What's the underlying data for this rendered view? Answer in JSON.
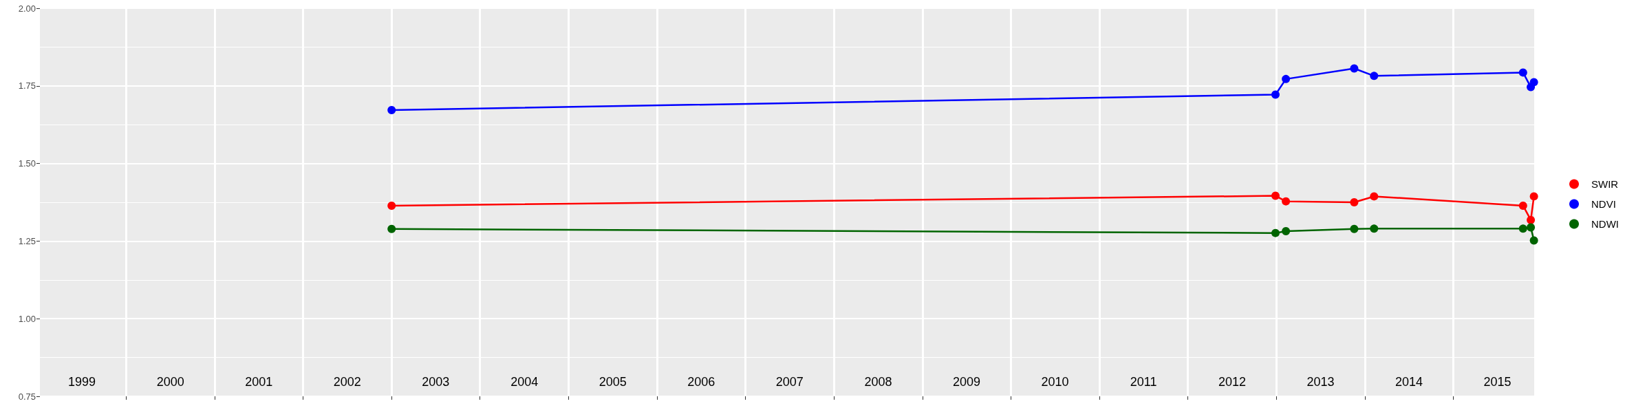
{
  "chart_data": {
    "type": "line",
    "x": [
      "2003-01-01",
      "2012-12-28",
      "2013-02-09",
      "2013-11-18",
      "2014-02-08",
      "2015-10-16",
      "2015-11-17",
      "2015-11-30"
    ],
    "series": [
      {
        "name": "SWIR",
        "color": "#ff0000",
        "values": [
          1.364,
          1.396,
          1.378,
          1.375,
          1.394,
          1.364,
          1.318,
          1.394
        ]
      },
      {
        "name": "NDVI",
        "color": "#0000ff",
        "values": [
          1.672,
          1.722,
          1.772,
          1.806,
          1.782,
          1.793,
          1.746,
          1.762
        ]
      },
      {
        "name": "NDWI",
        "color": "#006400",
        "values": [
          1.289,
          1.276,
          1.282,
          1.289,
          1.29,
          1.29,
          1.294,
          1.252
        ]
      }
    ],
    "xlim": [
      "1999-01-10",
      "2015-12-01"
    ],
    "xticks": [
      {
        "value": "1999-07-02",
        "label": "1999"
      },
      {
        "value": "2000-01-01",
        "label": null
      },
      {
        "value": "2000-07-02",
        "label": "2000"
      },
      {
        "value": "2001-01-01",
        "label": null
      },
      {
        "value": "2001-07-02",
        "label": "2001"
      },
      {
        "value": "2002-01-01",
        "label": null
      },
      {
        "value": "2002-07-02",
        "label": "2002"
      },
      {
        "value": "2003-01-01",
        "label": null
      },
      {
        "value": "2003-07-02",
        "label": "2003"
      },
      {
        "value": "2004-01-01",
        "label": null
      },
      {
        "value": "2004-07-02",
        "label": "2004"
      },
      {
        "value": "2005-01-01",
        "label": null
      },
      {
        "value": "2005-07-02",
        "label": "2005"
      },
      {
        "value": "2006-01-01",
        "label": null
      },
      {
        "value": "2006-07-02",
        "label": "2006"
      },
      {
        "value": "2007-01-01",
        "label": null
      },
      {
        "value": "2007-07-02",
        "label": "2007"
      },
      {
        "value": "2008-01-01",
        "label": null
      },
      {
        "value": "2008-07-02",
        "label": "2008"
      },
      {
        "value": "2009-01-01",
        "label": null
      },
      {
        "value": "2009-07-02",
        "label": "2009"
      },
      {
        "value": "2010-01-01",
        "label": null
      },
      {
        "value": "2010-07-02",
        "label": "2010"
      },
      {
        "value": "2011-01-01",
        "label": null
      },
      {
        "value": "2011-07-02",
        "label": "2011"
      },
      {
        "value": "2012-01-01",
        "label": null
      },
      {
        "value": "2012-07-02",
        "label": "2012"
      },
      {
        "value": "2013-01-01",
        "label": null
      },
      {
        "value": "2013-07-02",
        "label": "2013"
      },
      {
        "value": "2014-01-01",
        "label": null
      },
      {
        "value": "2014-07-02",
        "label": "2014"
      },
      {
        "value": "2015-01-01",
        "label": null
      },
      {
        "value": "2015-07-02",
        "label": "2015"
      }
    ],
    "ylim": [
      0.75,
      2.0
    ],
    "yticks": [
      {
        "value": 0.75,
        "label": "0.75"
      },
      {
        "value": 1.0,
        "label": "1.00"
      },
      {
        "value": 1.25,
        "label": "1.25"
      },
      {
        "value": 1.5,
        "label": "1.50"
      },
      {
        "value": 1.75,
        "label": "1.75"
      },
      {
        "value": 2.0,
        "label": "2.00"
      }
    ],
    "grid": true,
    "legend": "right",
    "marker": "circle",
    "line_style": "solid"
  }
}
